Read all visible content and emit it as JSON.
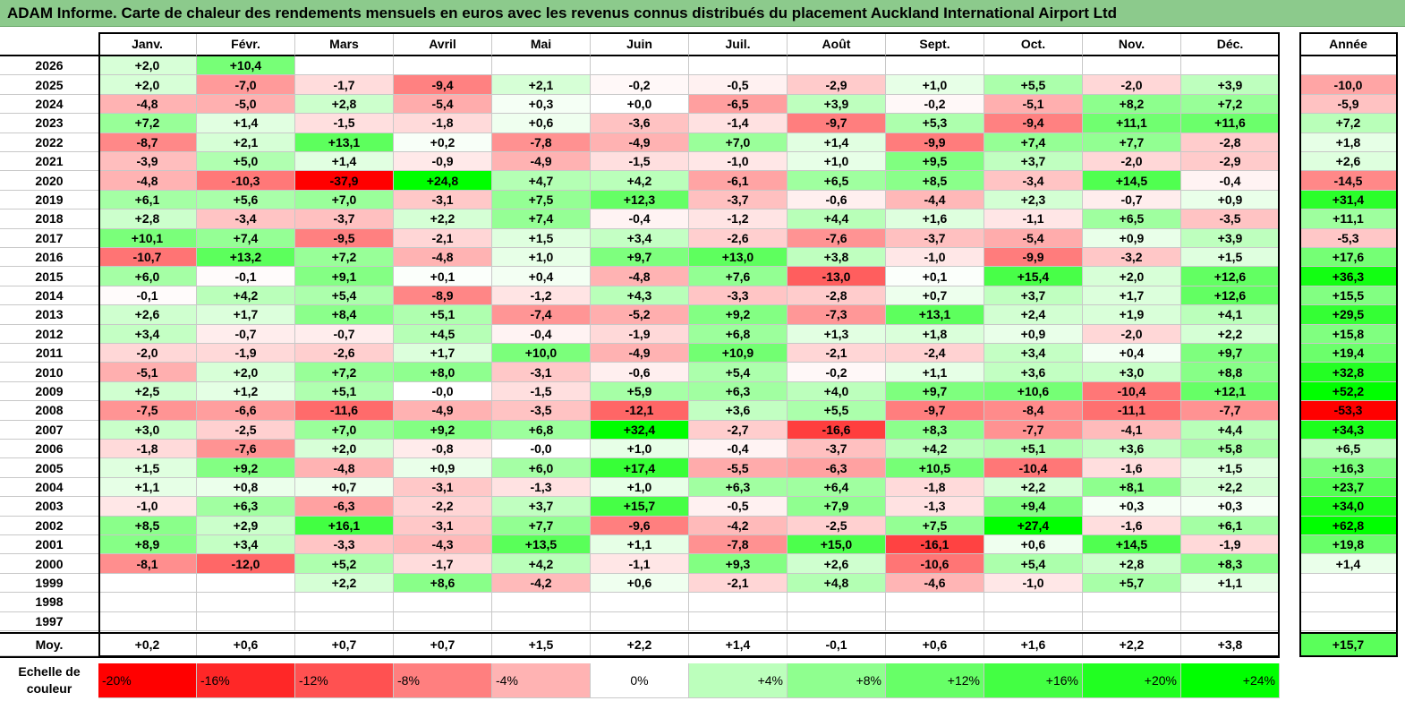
{
  "title": "ADAM Informe. Carte de chaleur des rendements mensuels en euros avec les revenus connus distribués du placement Auckland International Airport Ltd",
  "months": [
    "Janv.",
    "Févr.",
    "Mars",
    "Avril",
    "Mai",
    "Juin",
    "Juil.",
    "Août",
    "Sept.",
    "Oct.",
    "Nov.",
    "Déc."
  ],
  "year_header": "Année",
  "years": [
    "2026",
    "2025",
    "2024",
    "2023",
    "2022",
    "2021",
    "2020",
    "2019",
    "2018",
    "2017",
    "2016",
    "2015",
    "2014",
    "2013",
    "2012",
    "2011",
    "2010",
    "2009",
    "2008",
    "2007",
    "2006",
    "2005",
    "2004",
    "2003",
    "2002",
    "2001",
    "2000",
    "1999",
    "1998",
    "1997"
  ],
  "cells": [
    [
      "+2,0",
      "+10,4",
      "",
      "",
      "",
      "",
      "",
      "",
      "",
      "",
      "",
      ""
    ],
    [
      "+2,0",
      "-7,0",
      "-1,7",
      "-9,4",
      "+2,1",
      "-0,2",
      "-0,5",
      "-2,9",
      "+1,0",
      "+5,5",
      "-2,0",
      "+3,9"
    ],
    [
      "-4,8",
      "-5,0",
      "+2,8",
      "-5,4",
      "+0,3",
      "+0,0",
      "-6,5",
      "+3,9",
      "-0,2",
      "-5,1",
      "+8,2",
      "+7,2"
    ],
    [
      "+7,2",
      "+1,4",
      "-1,5",
      "-1,8",
      "+0,6",
      "-3,6",
      "-1,4",
      "-9,7",
      "+5,3",
      "-9,4",
      "+11,1",
      "+11,6"
    ],
    [
      "-8,7",
      "+2,1",
      "+13,1",
      "+0,2",
      "-7,8",
      "-4,9",
      "+7,0",
      "+1,4",
      "-9,9",
      "+7,4",
      "+7,7",
      "-2,8"
    ],
    [
      "-3,9",
      "+5,0",
      "+1,4",
      "-0,9",
      "-4,9",
      "-1,5",
      "-1,0",
      "+1,0",
      "+9,5",
      "+3,7",
      "-2,0",
      "-2,9"
    ],
    [
      "-4,8",
      "-10,3",
      "-37,9",
      "+24,8",
      "+4,7",
      "+4,2",
      "-6,1",
      "+6,5",
      "+8,5",
      "-3,4",
      "+14,5",
      "-0,4"
    ],
    [
      "+6,1",
      "+5,6",
      "+7,0",
      "-3,1",
      "+7,5",
      "+12,3",
      "-3,7",
      "-0,6",
      "-4,4",
      "+2,3",
      "-0,7",
      "+0,9"
    ],
    [
      "+2,8",
      "-3,4",
      "-3,7",
      "+2,2",
      "+7,4",
      "-0,4",
      "-1,2",
      "+4,4",
      "+1,6",
      "-1,1",
      "+6,5",
      "-3,5"
    ],
    [
      "+10,1",
      "+7,4",
      "-9,5",
      "-2,1",
      "+1,5",
      "+3,4",
      "-2,6",
      "-7,6",
      "-3,7",
      "-5,4",
      "+0,9",
      "+3,9"
    ],
    [
      "-10,7",
      "+13,2",
      "+7,2",
      "-4,8",
      "+1,0",
      "+9,7",
      "+13,0",
      "+3,8",
      "-1,0",
      "-9,9",
      "-3,2",
      "+1,5"
    ],
    [
      "+6,0",
      "-0,1",
      "+9,1",
      "+0,1",
      "+0,4",
      "-4,8",
      "+7,6",
      "-13,0",
      "+0,1",
      "+15,4",
      "+2,0",
      "+12,6"
    ],
    [
      "-0,1",
      "+4,2",
      "+5,4",
      "-8,9",
      "-1,2",
      "+4,3",
      "-3,3",
      "-2,8",
      "+0,7",
      "+3,7",
      "+1,7",
      "+12,6"
    ],
    [
      "+2,6",
      "+1,7",
      "+8,4",
      "+5,1",
      "-7,4",
      "-5,2",
      "+9,2",
      "-7,3",
      "+13,1",
      "+2,4",
      "+1,9",
      "+4,1"
    ],
    [
      "+3,4",
      "-0,7",
      "-0,7",
      "+4,5",
      "-0,4",
      "-1,9",
      "+6,8",
      "+1,3",
      "+1,8",
      "+0,9",
      "-2,0",
      "+2,2"
    ],
    [
      "-2,0",
      "-1,9",
      "-2,6",
      "+1,7",
      "+10,0",
      "-4,9",
      "+10,9",
      "-2,1",
      "-2,4",
      "+3,4",
      "+0,4",
      "+9,7"
    ],
    [
      "-5,1",
      "+2,0",
      "+7,2",
      "+8,0",
      "-3,1",
      "-0,6",
      "+5,4",
      "-0,2",
      "+1,1",
      "+3,6",
      "+3,0",
      "+8,8"
    ],
    [
      "+2,5",
      "+1,2",
      "+5,1",
      "-0,0",
      "-1,5",
      "+5,9",
      "+6,3",
      "+4,0",
      "+9,7",
      "+10,6",
      "-10,4",
      "+12,1"
    ],
    [
      "-7,5",
      "-6,6",
      "-11,6",
      "-4,9",
      "-3,5",
      "-12,1",
      "+3,6",
      "+5,5",
      "-9,7",
      "-8,4",
      "-11,1",
      "-7,7"
    ],
    [
      "+3,0",
      "-2,5",
      "+7,0",
      "+9,2",
      "+6,8",
      "+32,4",
      "-2,7",
      "-16,6",
      "+8,3",
      "-7,7",
      "-4,1",
      "+4,4"
    ],
    [
      "-1,8",
      "-7,6",
      "+2,0",
      "-0,8",
      "-0,0",
      "+1,0",
      "-0,4",
      "-3,7",
      "+4,2",
      "+5,1",
      "+3,6",
      "+5,8"
    ],
    [
      "+1,5",
      "+9,2",
      "-4,8",
      "+0,9",
      "+6,0",
      "+17,4",
      "-5,5",
      "-6,3",
      "+10,5",
      "-10,4",
      "-1,6",
      "+1,5"
    ],
    [
      "+1,1",
      "+0,8",
      "+0,7",
      "-3,1",
      "-1,3",
      "+1,0",
      "+6,3",
      "+6,4",
      "-1,8",
      "+2,2",
      "+8,1",
      "+2,2"
    ],
    [
      "-1,0",
      "+6,3",
      "-6,3",
      "-2,2",
      "+3,7",
      "+15,7",
      "-0,5",
      "+7,9",
      "-1,3",
      "+9,4",
      "+0,3",
      "+0,3"
    ],
    [
      "+8,5",
      "+2,9",
      "+16,1",
      "-3,1",
      "+7,7",
      "-9,6",
      "-4,2",
      "-2,5",
      "+7,5",
      "+27,4",
      "-1,6",
      "+6,1"
    ],
    [
      "+8,9",
      "+3,4",
      "-3,3",
      "-4,3",
      "+13,5",
      "+1,1",
      "-7,8",
      "+15,0",
      "-16,1",
      "+0,6",
      "+14,5",
      "-1,9"
    ],
    [
      "-8,1",
      "-12,0",
      "+5,2",
      "-1,7",
      "+4,2",
      "-1,1",
      "+9,3",
      "+2,6",
      "-10,6",
      "+5,4",
      "+2,8",
      "+8,3"
    ],
    [
      "",
      "",
      "+2,2",
      "+8,6",
      "-4,2",
      "+0,6",
      "-2,1",
      "+4,8",
      "-4,6",
      "-1,0",
      "+5,7",
      "+1,1"
    ],
    [
      "",
      "",
      "",
      "",
      "",
      "",
      "",
      "",
      "",
      "",
      "",
      ""
    ],
    [
      "",
      "",
      "",
      "",
      "",
      "",
      "",
      "",
      "",
      "",
      "",
      ""
    ]
  ],
  "annual": [
    "",
    "-10,0",
    "-5,9",
    "+7,2",
    "+1,8",
    "+2,6",
    "-14,5",
    "+31,4",
    "+11,1",
    "-5,3",
    "+17,6",
    "+36,3",
    "+15,5",
    "+29,5",
    "+15,8",
    "+19,4",
    "+32,8",
    "+52,2",
    "-53,3",
    "+34,3",
    "+6,5",
    "+16,3",
    "+23,7",
    "+34,0",
    "+62,8",
    "+19,8",
    "+1,4",
    "",
    "",
    ""
  ],
  "avg_label": "Moy.",
  "averages": [
    "+0,2",
    "+0,6",
    "+0,7",
    "+0,7",
    "+1,5",
    "+2,2",
    "+1,4",
    "-0,1",
    "+0,6",
    "+1,6",
    "+2,2",
    "+3,8"
  ],
  "avg_annual": "+15,7",
  "legend_label": "Echelle de couleur",
  "legend": [
    "-20%",
    "-16%",
    "-12%",
    "-8%",
    "-4%",
    "0%",
    "+4%",
    "+8%",
    "+12%",
    "+16%",
    "+20%",
    "+24%"
  ],
  "colors": {
    "title_bg": "#8cca8c",
    "neg_extreme": "#ff0000",
    "pos_extreme": "#00ff00",
    "neutral": "#ffffff"
  }
}
